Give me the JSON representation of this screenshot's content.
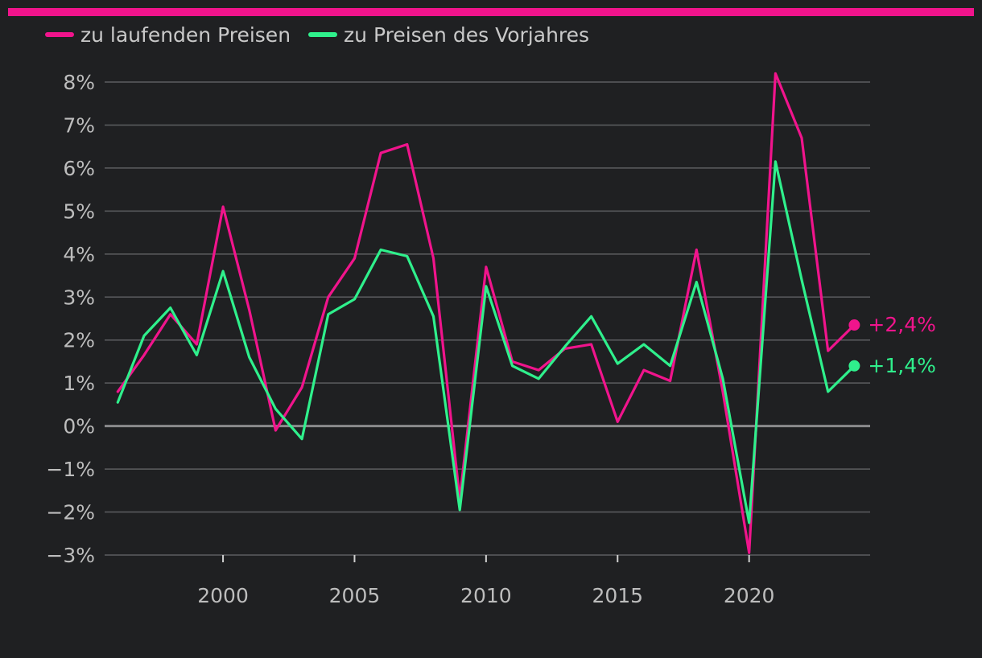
{
  "colors": {
    "background": "#1f2022",
    "accent_bar": "#f0148c",
    "grid": "#5d5e61",
    "zero_line": "#8a8a8c",
    "text": "#bdbdbd"
  },
  "chart_data": {
    "type": "line",
    "title": "",
    "xlabel": "",
    "ylabel": "",
    "x": [
      1996,
      1997,
      1998,
      1999,
      2000,
      2001,
      2002,
      2003,
      2004,
      2005,
      2006,
      2007,
      2008,
      2009,
      2010,
      2011,
      2012,
      2013,
      2014,
      2015,
      2016,
      2017,
      2018,
      2019,
      2020,
      2021,
      2022,
      2023,
      2024
    ],
    "xlim": [
      1995.5,
      2024.6
    ],
    "ylim": [
      -3,
      8
    ],
    "x_ticks": [
      2000,
      2005,
      2010,
      2015,
      2020
    ],
    "x_tick_labels": [
      "2000",
      "2005",
      "2010",
      "2015",
      "2020"
    ],
    "y_ticks": [
      8,
      7,
      6,
      5,
      4,
      3,
      2,
      1,
      0,
      -1,
      -2,
      -3
    ],
    "y_tick_labels": [
      "8%",
      "7%",
      "6%",
      "5%",
      "4%",
      "3%",
      "2%",
      "1%",
      "0%",
      "−1%",
      "−2%",
      "−3%"
    ],
    "grid": true,
    "legend_position": "top-left",
    "series": [
      {
        "name": "zu laufenden Preisen",
        "color": "#f0148c",
        "values": [
          0.8,
          1.65,
          2.6,
          1.9,
          5.1,
          2.7,
          -0.1,
          0.9,
          3.0,
          3.9,
          6.35,
          6.55,
          3.9,
          -1.7,
          3.7,
          1.5,
          1.3,
          1.8,
          1.9,
          0.1,
          1.3,
          1.05,
          4.1,
          0.8,
          -2.95,
          8.2,
          6.7,
          1.75,
          2.35
        ],
        "end_label": "+2,4%"
      },
      {
        "name": "zu Preisen des Vorjahres",
        "color": "#2ff08c",
        "values": [
          0.55,
          2.1,
          2.75,
          1.65,
          3.6,
          1.6,
          0.4,
          -0.3,
          2.6,
          2.95,
          4.1,
          3.95,
          2.55,
          -1.95,
          3.25,
          1.4,
          1.1,
          1.85,
          2.55,
          1.45,
          1.9,
          1.4,
          3.35,
          1.1,
          -2.25,
          6.15,
          3.4,
          0.8,
          1.4
        ],
        "end_label": "+1,4%"
      }
    ]
  }
}
